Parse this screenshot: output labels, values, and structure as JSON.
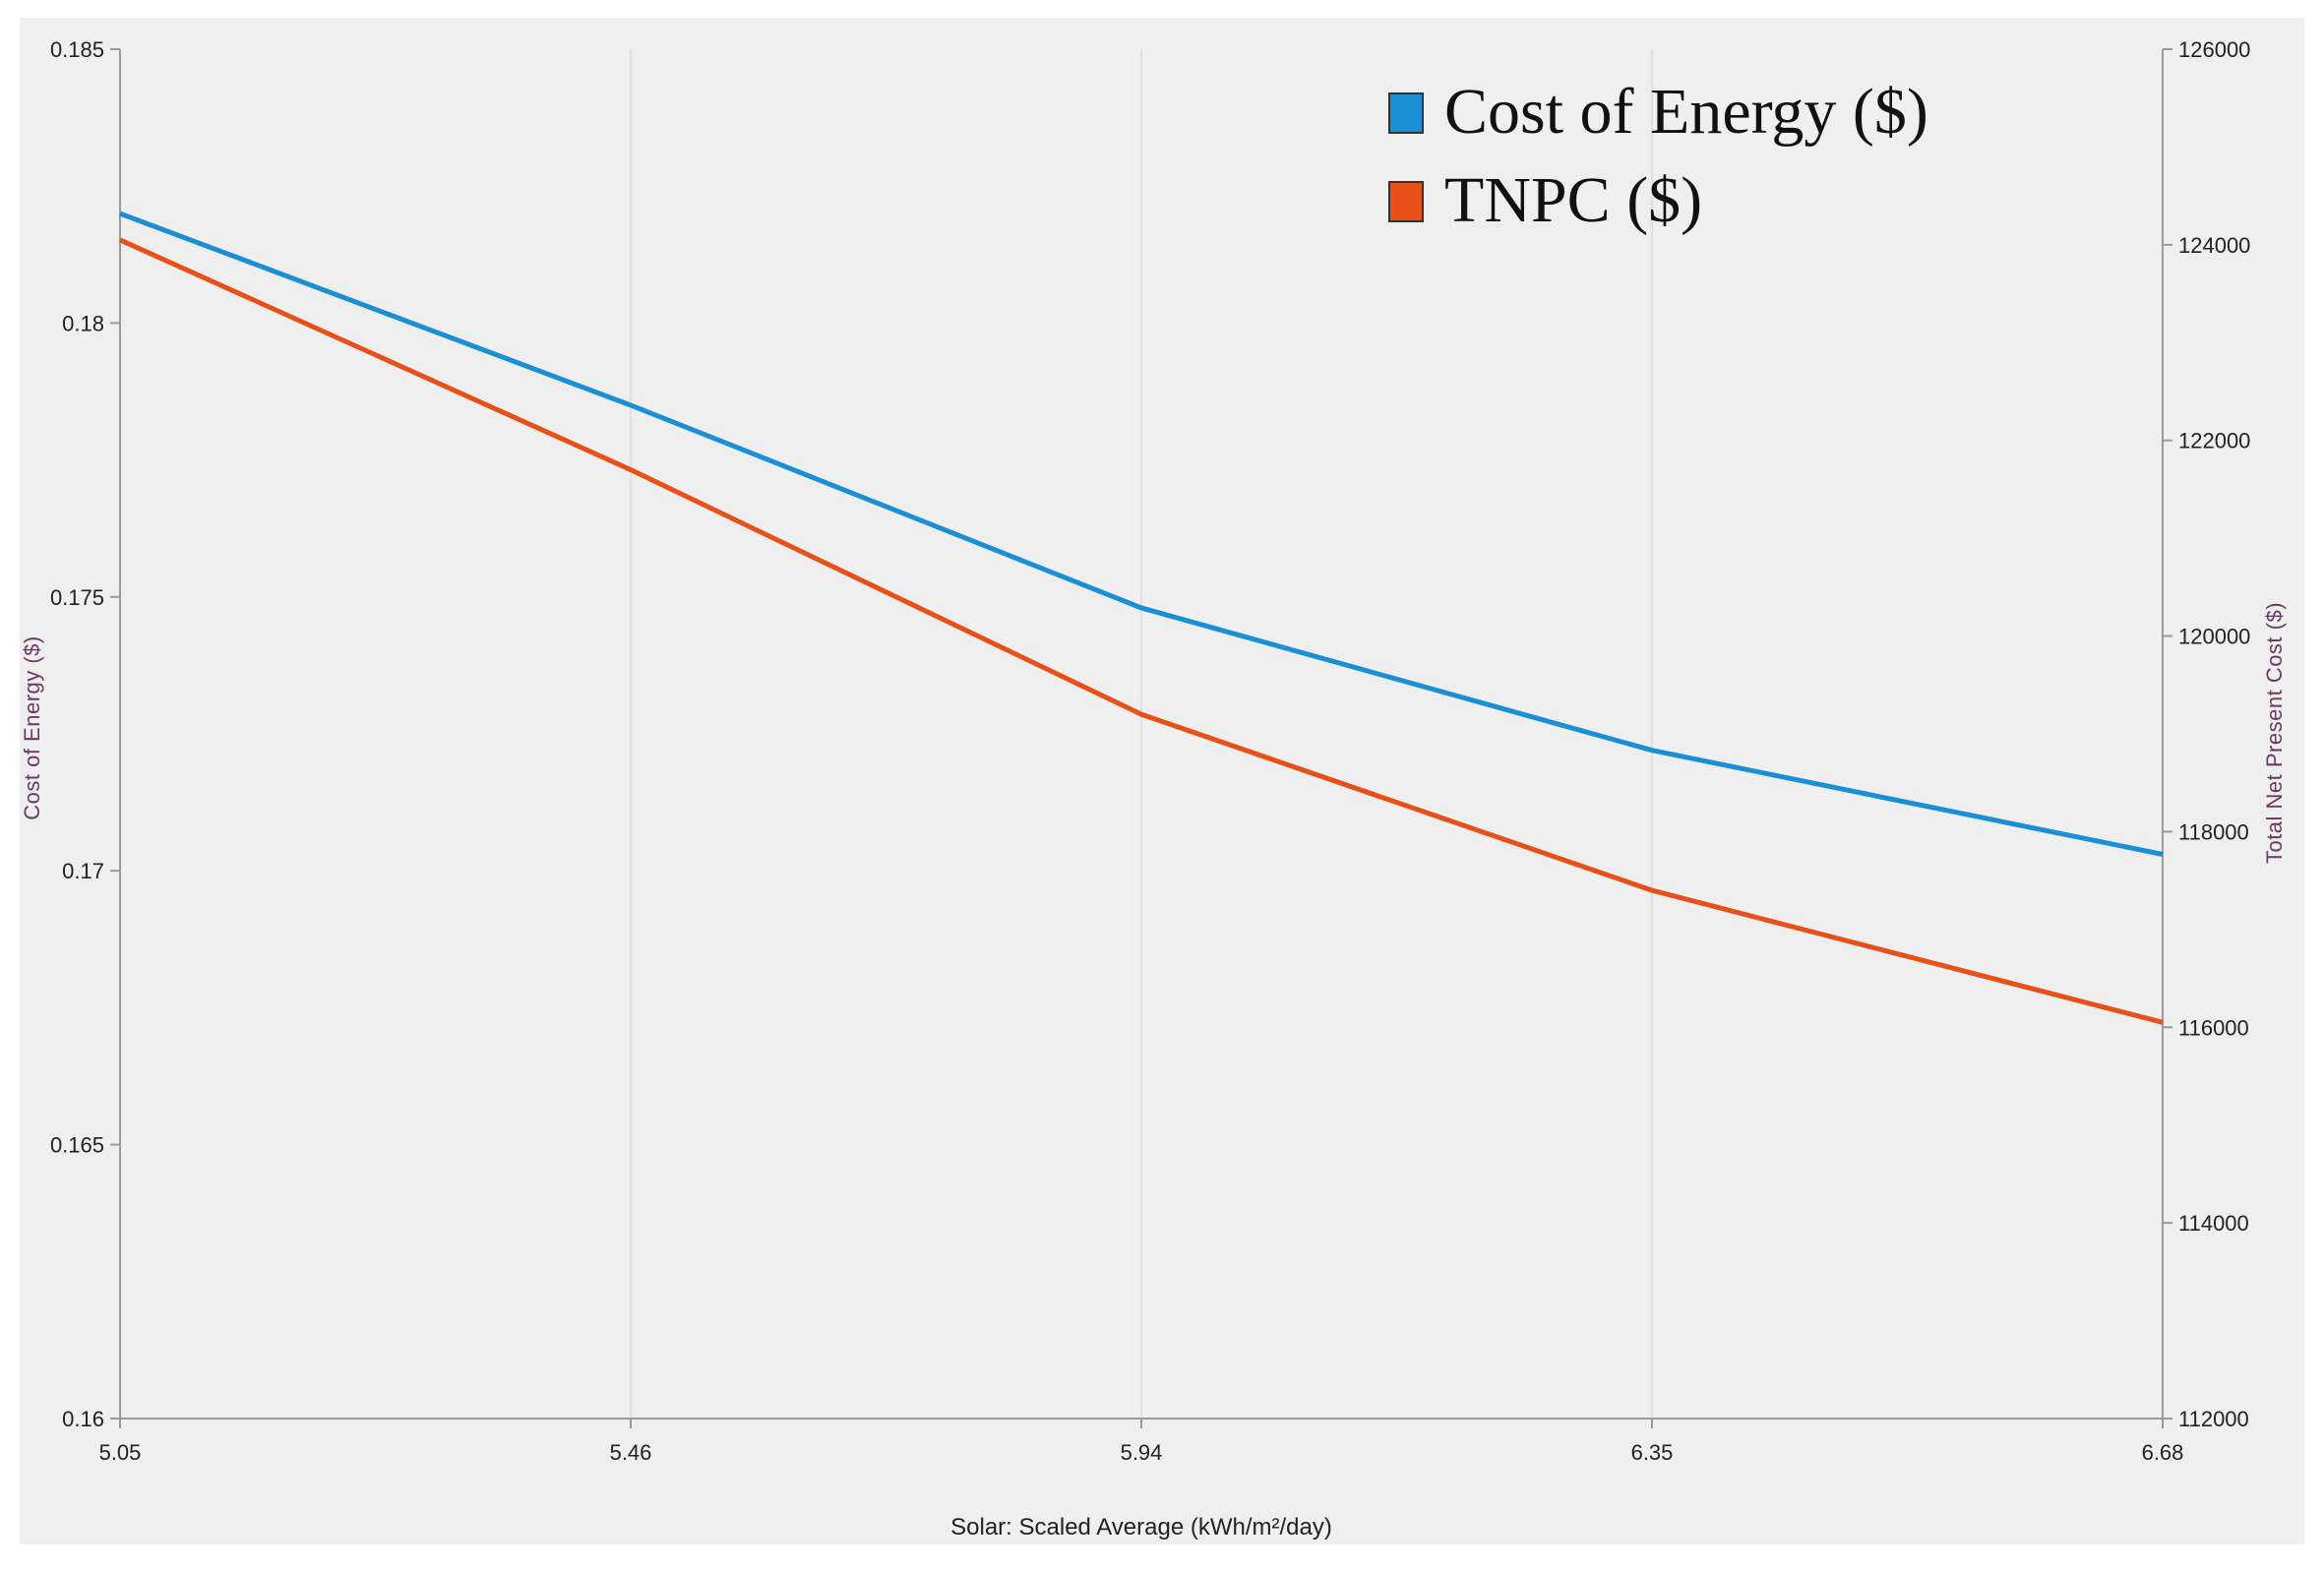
{
  "chart_data": {
    "type": "line",
    "title": "",
    "xlabel": "Solar: Scaled Average (kWh/m²/day)",
    "ylabel": "Cost of Energy ($)",
    "y2label": "Total Net Present Cost ($)",
    "categories": [
      "5.05",
      "5.46",
      "5.94",
      "6.35",
      "6.68"
    ],
    "ylim": [
      0.16,
      0.185
    ],
    "y2lim": [
      112000,
      126000
    ],
    "yticks": [
      "0.16",
      "0.165",
      "0.17",
      "0.175",
      "0.18",
      "0.185"
    ],
    "y2ticks": [
      "112000",
      "114000",
      "116000",
      "118000",
      "120000",
      "122000",
      "124000",
      "126000"
    ],
    "series": [
      {
        "name": "Cost of Energy ($)",
        "axis": "left",
        "color": "#1a8fd6",
        "values": [
          0.182,
          0.1785,
          0.1748,
          0.1722,
          0.1703
        ]
      },
      {
        "name": "TNPC ($)",
        "axis": "right",
        "color": "#e8501a",
        "values": [
          124050,
          121700,
          119200,
          117400,
          116050
        ]
      }
    ],
    "legend_position": "top-right",
    "grid": "vertical"
  }
}
